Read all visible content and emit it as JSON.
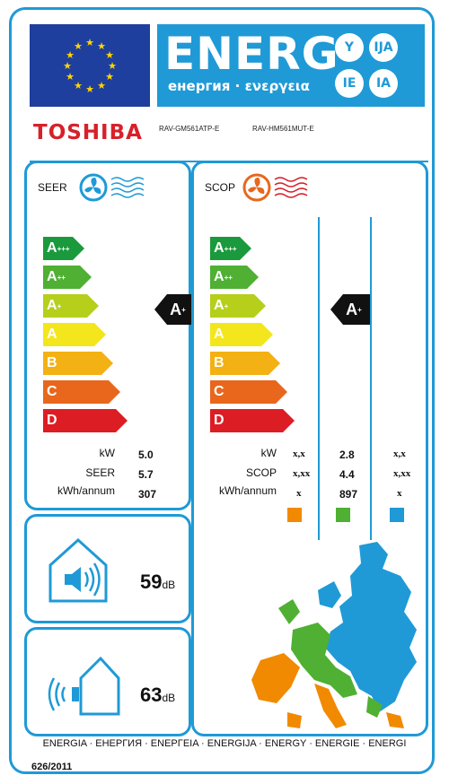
{
  "header": {
    "energy_word": "ENERG",
    "energy_subtitle": "енергия · ενεργεια",
    "lang_badges": [
      "Y",
      "IJA",
      "IE",
      "IA"
    ],
    "supplier": "TOSHIBA",
    "model_indoor": "RAV-GM561ATP-E",
    "model_outdoor": "RAV-HM561MUT-E"
  },
  "scale": [
    {
      "letter": "A",
      "sup": "+++",
      "color": "#1a9a3c"
    },
    {
      "letter": "A",
      "sup": "++",
      "color": "#4fb033"
    },
    {
      "letter": "A",
      "sup": "+",
      "color": "#b6cf1b"
    },
    {
      "letter": "A",
      "sup": "",
      "color": "#f3e61c"
    },
    {
      "letter": "B",
      "sup": "",
      "color": "#f3b114"
    },
    {
      "letter": "C",
      "sup": "",
      "color": "#e8671c"
    },
    {
      "letter": "D",
      "sup": "",
      "color": "#dd1d24"
    }
  ],
  "cooling": {
    "title": "SEER",
    "class_letter": "A",
    "class_sup": "+",
    "labels": [
      "kW",
      "SEER",
      "kWh/annum"
    ],
    "values": [
      "5.0",
      "5.7",
      "307"
    ]
  },
  "heating": {
    "title": "SCOP",
    "class_letter": "A",
    "class_sup": "+",
    "labels": [
      "kW",
      "SCOP",
      "kWh/annum"
    ],
    "col_warmer": [
      "x,x",
      "x,xx",
      "x"
    ],
    "col_average": [
      "2.8",
      "4.4",
      "897"
    ],
    "col_colder": [
      "x,x",
      "x,xx",
      "x"
    ],
    "zone_colors": [
      "#f18a00",
      "#4fb033",
      "#1f9ad6"
    ]
  },
  "noise": {
    "indoor_value": "59",
    "outdoor_value": "63",
    "unit": "dB"
  },
  "footer": {
    "languages": "ENERGIA · ЕНЕРГИЯ · ΕΝΕΡΓΕΙΑ · ENERGIJA · ENERGY · ENERGIE · ENERGI",
    "regulation": "626/2011"
  },
  "colors": {
    "accent": "#1f9ad6",
    "eu_blue": "#1f3f9e",
    "brand_red": "#d8202a",
    "star": "#ffd500"
  }
}
